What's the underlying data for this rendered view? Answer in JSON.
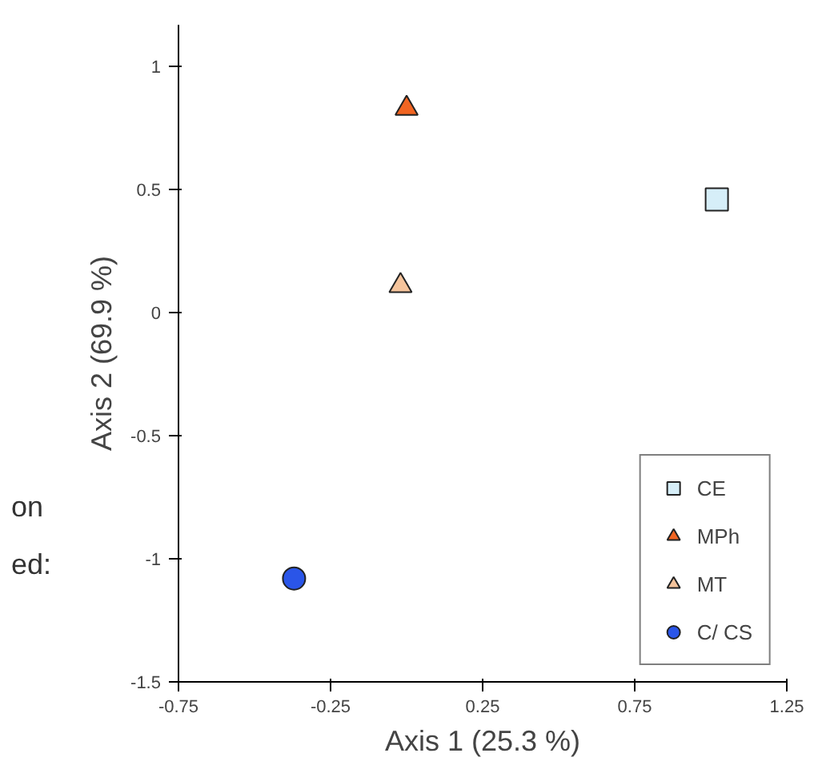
{
  "chart_data": {
    "type": "scatter",
    "xlabel": "Axis 1 (25.3 %)",
    "ylabel": "Axis 2 (69.9 %)",
    "xlim": [
      -0.75,
      1.25
    ],
    "xticks": [
      -0.75,
      -0.25,
      0.25,
      0.75,
      1.25
    ],
    "ylim": [
      -1.5,
      1.17
    ],
    "yticks": [
      -1.5,
      -1,
      -0.5,
      0,
      0.5,
      1
    ],
    "grid": false,
    "legend": "bottom right",
    "annotations": [
      "on",
      "ed:"
    ],
    "series": [
      {
        "name": "CE",
        "color": "#d6eef8",
        "marker": "square",
        "x": [
          1.02
        ],
        "values": [
          0.46
        ]
      },
      {
        "name": "MPh",
        "color": "#f26522",
        "marker": "triangle",
        "x": [
          0.0
        ],
        "values": [
          0.83
        ]
      },
      {
        "name": "MT",
        "color": "#f5c49c",
        "marker": "triangle",
        "x": [
          -0.02
        ],
        "values": [
          0.11
        ]
      },
      {
        "name": "C/ CS",
        "color": "#2a55e8",
        "marker": "circle",
        "x": [
          -0.37
        ],
        "values": [
          -1.08
        ]
      }
    ]
  }
}
